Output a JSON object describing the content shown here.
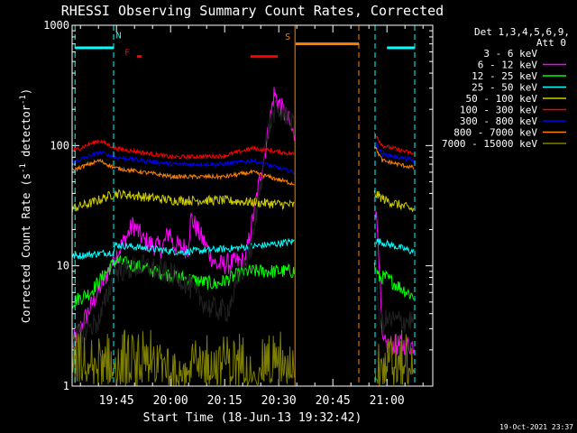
{
  "chart_data": {
    "type": "line",
    "title": "RHESSI Observing Summary Count Rates, Corrected",
    "xlabel": "Start Time (18-Jun-13 19:32:42)",
    "ylabel": "Corrected Count Rate (s",
    "ylabel_sup1": "-1",
    "ylabel_mid": " detector",
    "ylabel_sup2": "-1",
    "ylabel_end": ")",
    "yscale": "log",
    "ylim": [
      1,
      1000
    ],
    "xlim_min": [
      0,
      100
    ],
    "x_ticks": [
      {
        "t": 12.3,
        "label": "19:45"
      },
      {
        "t": 27.3,
        "label": "20:00"
      },
      {
        "t": 42.3,
        "label": "20:15"
      },
      {
        "t": 57.3,
        "label": "20:30"
      },
      {
        "t": 72.3,
        "label": "20:45"
      },
      {
        "t": 87.3,
        "label": "21:00"
      }
    ],
    "y_ticks": [
      {
        "v": 1,
        "label": "1"
      },
      {
        "v": 10,
        "label": "10"
      },
      {
        "v": 100,
        "label": "100"
      },
      {
        "v": 1000,
        "label": "1000"
      }
    ],
    "legend_title": "Det 1,3,4,5,6,9,",
    "legend_subtitle": "Att 0",
    "series": [
      {
        "name": "3 - 6 keV",
        "color": "#000000"
      },
      {
        "name": "6 - 12 keV",
        "color": "#ff00ff"
      },
      {
        "name": "12 - 25 keV",
        "color": "#00ff00"
      },
      {
        "name": "25 - 50 keV",
        "color": "#00ffff"
      },
      {
        "name": "50 - 100 keV",
        "color": "#cccc00"
      },
      {
        "name": "100 - 300 keV",
        "color": "#ff0000"
      },
      {
        "name": "300 - 800 keV",
        "color": "#0000ff"
      },
      {
        "name": "800 - 7000 keV",
        "color": "#ff8000"
      },
      {
        "name": "7000 - 15000 keV",
        "color": "#808000"
      }
    ],
    "gaps": [
      {
        "start": 61.8,
        "end": 83.8
      }
    ],
    "night_bars": [
      {
        "start": 0.8,
        "end": 11.5,
        "value": 650,
        "color": "#00ffff"
      },
      {
        "start": 87.3,
        "end": 95.0,
        "value": 650,
        "color": "#00ffff"
      },
      {
        "start": 62.0,
        "end": 79.5,
        "value": 700,
        "color": "#ff8000"
      },
      {
        "start": 18.0,
        "end": 19.3,
        "value": 550,
        "color": "#ff0000"
      },
      {
        "start": 49.5,
        "end": 57.0,
        "value": 550,
        "color": "#ff0000"
      }
    ],
    "annotations": [
      {
        "t": 12.9,
        "value": 780,
        "text": "N",
        "color": "#00ffff"
      },
      {
        "t": 15.3,
        "value": 560,
        "text": "F",
        "color": "#ff0000"
      },
      {
        "t": 59.8,
        "value": 760,
        "text": "S",
        "color": "#ff8000"
      }
    ],
    "vlines": [
      {
        "t": 0.8,
        "color": "#00ffff",
        "style": "dashed"
      },
      {
        "t": 11.5,
        "color": "#00ffff",
        "style": "dashed"
      },
      {
        "t": 61.8,
        "color": "#ff8000",
        "style": "solid"
      },
      {
        "t": 79.5,
        "color": "#ff8000",
        "style": "dashed"
      },
      {
        "t": 84.0,
        "color": "#00ffff",
        "style": "dashed"
      },
      {
        "t": 95.0,
        "color": "#00ffff",
        "style": "dashed"
      }
    ],
    "keypoints": [
      {
        "name": "3 - 6 keV",
        "t": [
          0,
          7.5,
          12,
          20,
          30,
          38,
          43,
          50,
          54,
          56,
          60,
          61.5,
          83.8,
          84,
          85,
          86,
          90,
          95
        ],
        "v": [
          2.5,
          3.5,
          9,
          10,
          8,
          4.5,
          4.2,
          15,
          120,
          190,
          180,
          140,
          45,
          20,
          3.5,
          3.5,
          3.5,
          3.5
        ]
      },
      {
        "name": "6 - 12 keV",
        "t": [
          0,
          12,
          17,
          20,
          25,
          27,
          28,
          32,
          33,
          40,
          48,
          54,
          56,
          60,
          61.5,
          83.8,
          85,
          86,
          92,
          95
        ],
        "v": [
          2.2,
          12,
          22,
          16,
          14,
          20,
          15,
          14,
          25,
          10,
          11,
          110,
          270,
          160,
          120,
          40,
          15,
          2.2,
          2.2,
          2.2
        ]
      },
      {
        "name": "12 - 25 keV",
        "t": [
          0,
          5,
          12,
          30,
          40,
          48,
          55,
          61.5,
          83.8,
          85,
          87,
          95
        ],
        "v": [
          5,
          6,
          11,
          8,
          7,
          9,
          9,
          9,
          10,
          8,
          8,
          5.5
        ]
      },
      {
        "name": "25 - 50 keV",
        "t": [
          0,
          11.5,
          12,
          30,
          45,
          55,
          61.5,
          83.8,
          85,
          88,
          95
        ],
        "v": [
          12,
          13,
          15,
          13,
          14,
          15,
          16,
          16,
          16,
          15,
          13
        ]
      },
      {
        "name": "50 - 100 keV",
        "t": [
          0,
          5,
          12,
          28,
          42,
          55,
          61.5,
          83.8,
          87,
          95
        ],
        "v": [
          30,
          33,
          40,
          35,
          35,
          33,
          32,
          40,
          35,
          29
        ]
      },
      {
        "name": "100 - 300 keV",
        "t": [
          0,
          7.5,
          12,
          28,
          42,
          50,
          61.5,
          83.8,
          86,
          95
        ],
        "v": [
          90,
          110,
          95,
          80,
          82,
          95,
          85,
          130,
          100,
          85
        ]
      },
      {
        "name": "300 - 800 keV",
        "t": [
          0,
          7.5,
          12,
          28,
          42,
          50,
          61.5,
          83.8,
          86,
          95
        ],
        "v": [
          72,
          88,
          80,
          70,
          70,
          75,
          60,
          110,
          85,
          75
        ]
      },
      {
        "name": "800 - 7000 keV",
        "t": [
          0,
          7.5,
          12,
          28,
          42,
          50,
          61.5,
          83.8,
          86,
          95
        ],
        "v": [
          62,
          75,
          65,
          55,
          55,
          60,
          48,
          100,
          75,
          65
        ]
      },
      {
        "name": "7000 - 15000 keV",
        "t": [
          0,
          61.5,
          83.8,
          95
        ],
        "v": [
          1.5,
          1.5,
          1.5,
          1.5
        ]
      }
    ]
  },
  "footer_date": "19-Oct-2021 23:37"
}
